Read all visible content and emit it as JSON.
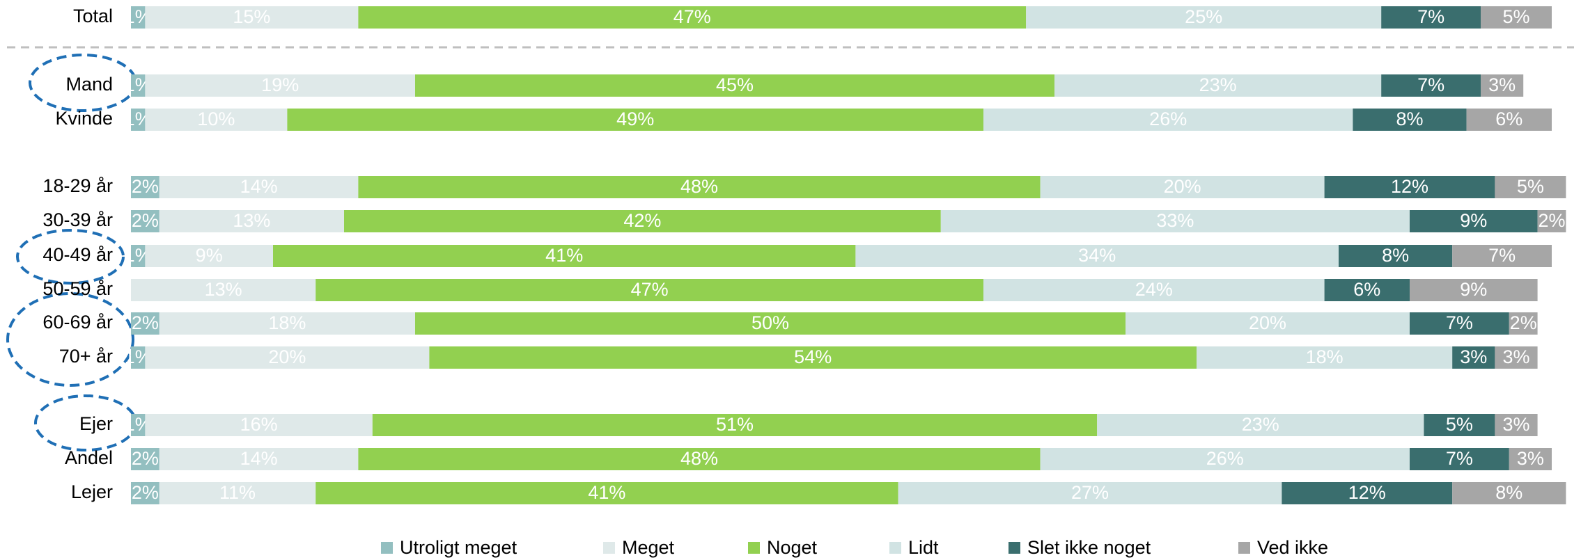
{
  "chart_data": {
    "type": "stacked_bar_horizontal",
    "categories": [
      "Total",
      "Mand",
      "Kvinde",
      "18-29 år",
      "30-39 år",
      "40-49 år",
      "50-59 år",
      "60-69 år",
      "70+ år",
      "Ejer",
      "Andel",
      "Lejer"
    ],
    "xlim": [
      0,
      100
    ],
    "legend": "bottom",
    "series": [
      {
        "name": "Utroligt meget",
        "color": "#93bfc0",
        "values": [
          1,
          1,
          1,
          2,
          2,
          1,
          0,
          2,
          1,
          1,
          2,
          2
        ],
        "value_labels": [
          "1%",
          "1%",
          "1%",
          "2%",
          "2%",
          "1%",
          null,
          "2%",
          "1%",
          "1%",
          "2%",
          "2%"
        ]
      },
      {
        "name": "Meget",
        "color": "#dfe9e9",
        "values": [
          15,
          19,
          10,
          14,
          13,
          9,
          13,
          18,
          20,
          16,
          14,
          11
        ],
        "value_labels": [
          "15%",
          "19%",
          "10%",
          "14%",
          "13%",
          "9%",
          "13%",
          "18%",
          "20%",
          "16%",
          "14%",
          "11%"
        ]
      },
      {
        "name": "Noget",
        "color": "#92d050",
        "values": [
          47,
          45,
          49,
          48,
          42,
          41,
          47,
          50,
          54,
          51,
          48,
          41
        ],
        "value_labels": [
          "47%",
          "45%",
          "49%",
          "48%",
          "42%",
          "41%",
          "47%",
          "50%",
          "54%",
          "51%",
          "48%",
          "41%"
        ]
      },
      {
        "name": "Lidt",
        "color": "#d1e3e3",
        "values": [
          25,
          23,
          26,
          20,
          33,
          34,
          24,
          20,
          18,
          23,
          26,
          27
        ],
        "value_labels": [
          "25%",
          "23%",
          "26%",
          "20%",
          "33%",
          "34%",
          "24%",
          "20%",
          "18%",
          "23%",
          "26%",
          "27%"
        ]
      },
      {
        "name": "Slet ikke noget",
        "color": "#3a6e6e",
        "values": [
          7,
          7,
          8,
          12,
          9,
          8,
          6,
          7,
          3,
          5,
          7,
          12
        ],
        "value_labels": [
          "7%",
          "7%",
          "8%",
          "12%",
          "9%",
          "8%",
          "6%",
          "7%",
          "3%",
          "5%",
          "7%",
          "12%"
        ]
      },
      {
        "name": "Ved ikke",
        "color": "#a6a6a6",
        "values": [
          5,
          3,
          6,
          5,
          2,
          7,
          9,
          2,
          3,
          3,
          3,
          8
        ],
        "value_labels": [
          "5%",
          "3%",
          "6%",
          "5%",
          "2%",
          "7%",
          "9%",
          "2%",
          "3%",
          "3%",
          "3%",
          "8%"
        ]
      }
    ]
  }
}
